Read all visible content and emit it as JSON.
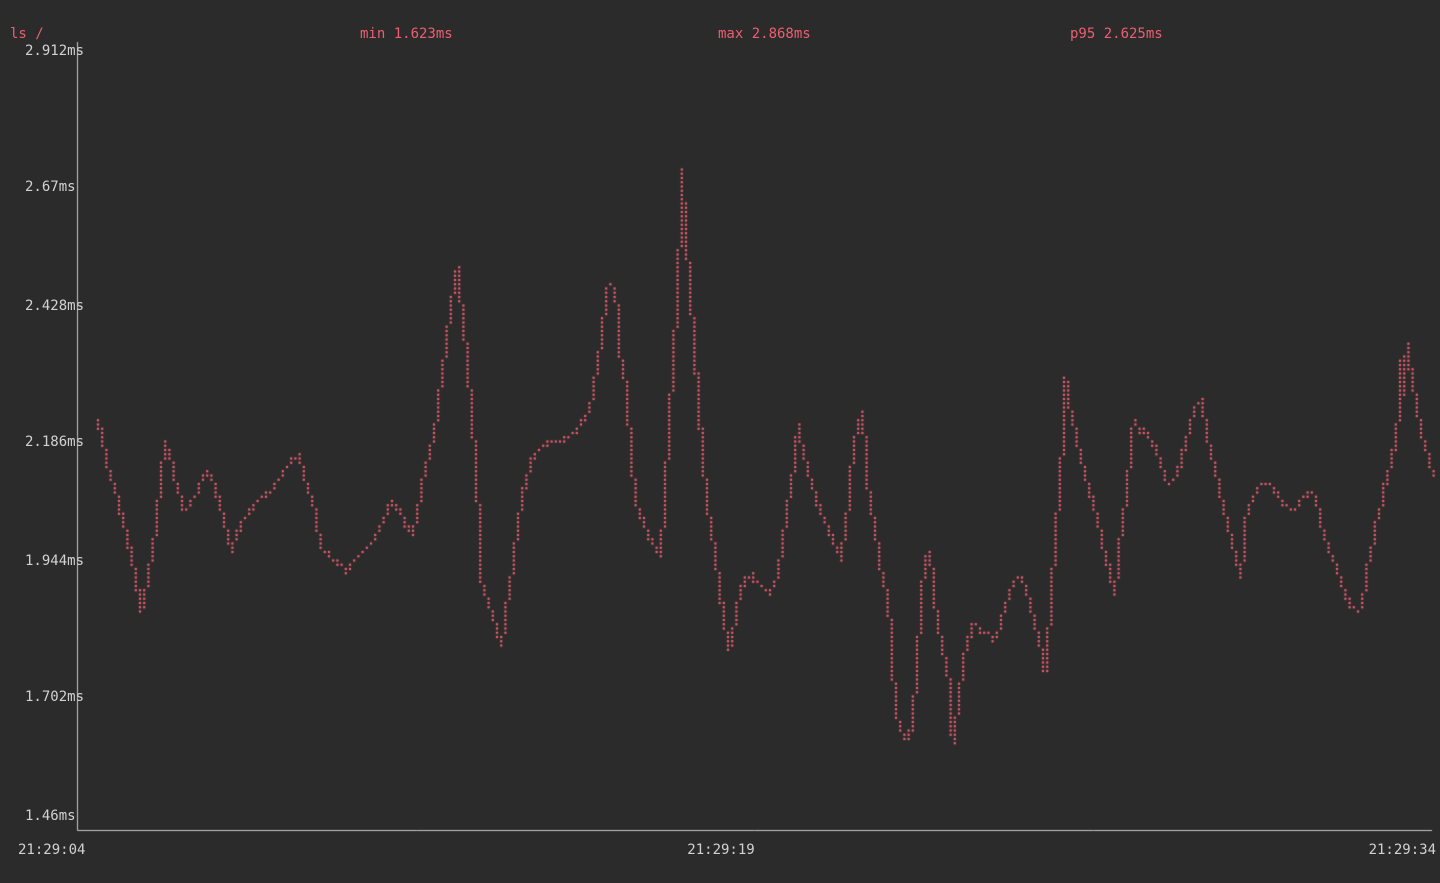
{
  "header": {
    "command": "ls /",
    "min": "min 1.623ms",
    "max": "max 2.868ms",
    "p95": "p95 2.625ms"
  },
  "colors": {
    "background": "#2b2b2b",
    "series_red": "#ec5f70",
    "text_gray": "#d2d2d2",
    "axis_gray": "#c9c9c9"
  },
  "chart_data": {
    "type": "line",
    "style": "dotted-braille-terminal",
    "title": "ls /",
    "xlabel": "",
    "ylabel": "",
    "grid": false,
    "legend": "none",
    "stats": {
      "min_ms": 1.623,
      "max_ms": 2.868,
      "p95_ms": 2.625
    },
    "ylim_ms": [
      1.46,
      2.912
    ],
    "x_window_seconds": 30,
    "x_ticks": [
      "21:29:04",
      "21:29:19",
      "21:29:34"
    ],
    "y_ticks": [
      {
        "label": "2.912ms",
        "value": 2.912
      },
      {
        "label": "2.67ms",
        "value": 2.67
      },
      {
        "label": "2.428ms",
        "value": 2.428
      },
      {
        "label": "2.186ms",
        "value": 2.186
      },
      {
        "label": "1.944ms",
        "value": 1.944
      },
      {
        "label": "1.702ms",
        "value": 1.702
      },
      {
        "label": "1.46ms",
        "value": 1.46
      }
    ],
    "points_t_ms": [
      [
        0.46,
        2.215
      ],
      [
        0.59,
        2.167
      ],
      [
        0.73,
        2.115
      ],
      [
        0.86,
        2.078
      ],
      [
        0.99,
        2.038
      ],
      [
        1.12,
        1.996
      ],
      [
        1.25,
        1.94
      ],
      [
        1.36,
        1.889
      ],
      [
        1.43,
        1.861
      ],
      [
        1.52,
        1.9
      ],
      [
        1.63,
        1.955
      ],
      [
        1.74,
        2.018
      ],
      [
        1.85,
        2.102
      ],
      [
        1.91,
        2.152
      ],
      [
        1.96,
        2.176
      ],
      [
        2.05,
        2.147
      ],
      [
        2.16,
        2.106
      ],
      [
        2.27,
        2.075
      ],
      [
        2.38,
        2.045
      ],
      [
        2.47,
        2.06
      ],
      [
        2.58,
        2.075
      ],
      [
        2.69,
        2.089
      ],
      [
        2.8,
        2.108
      ],
      [
        2.91,
        2.121
      ],
      [
        2.99,
        2.1
      ],
      [
        3.08,
        2.075
      ],
      [
        3.15,
        2.056
      ],
      [
        3.24,
        2.032
      ],
      [
        3.32,
        2.001
      ],
      [
        3.41,
        1.972
      ],
      [
        3.52,
        1.999
      ],
      [
        3.65,
        2.027
      ],
      [
        3.81,
        2.047
      ],
      [
        3.96,
        2.064
      ],
      [
        4.12,
        2.075
      ],
      [
        4.27,
        2.082
      ],
      [
        4.45,
        2.104
      ],
      [
        4.62,
        2.124
      ],
      [
        4.75,
        2.141
      ],
      [
        4.86,
        2.15
      ],
      [
        4.95,
        2.128
      ],
      [
        5.06,
        2.093
      ],
      [
        5.17,
        2.069
      ],
      [
        5.26,
        2.038
      ],
      [
        5.35,
        1.986
      ],
      [
        5.46,
        1.973
      ],
      [
        5.59,
        1.962
      ],
      [
        5.72,
        1.953
      ],
      [
        5.83,
        1.944
      ],
      [
        5.92,
        1.935
      ],
      [
        6.03,
        1.95
      ],
      [
        6.16,
        1.959
      ],
      [
        6.32,
        1.968
      ],
      [
        6.45,
        1.983
      ],
      [
        6.58,
        2.001
      ],
      [
        6.69,
        2.018
      ],
      [
        6.8,
        2.042
      ],
      [
        6.89,
        2.064
      ],
      [
        7.0,
        2.054
      ],
      [
        7.11,
        2.045
      ],
      [
        7.24,
        2.02
      ],
      [
        7.33,
        2.01
      ],
      [
        7.4,
        2.003
      ],
      [
        7.48,
        2.032
      ],
      [
        7.55,
        2.075
      ],
      [
        7.64,
        2.11
      ],
      [
        7.73,
        2.143
      ],
      [
        7.81,
        2.167
      ],
      [
        7.9,
        2.207
      ],
      [
        7.99,
        2.272
      ],
      [
        8.06,
        2.312
      ],
      [
        8.12,
        2.358
      ],
      [
        8.21,
        2.406
      ],
      [
        8.28,
        2.45
      ],
      [
        8.34,
        2.48
      ],
      [
        8.39,
        2.496
      ],
      [
        8.45,
        2.437
      ],
      [
        8.52,
        2.391
      ],
      [
        8.58,
        2.336
      ],
      [
        8.65,
        2.272
      ],
      [
        8.72,
        2.198
      ],
      [
        8.78,
        2.124
      ],
      [
        8.85,
        2.032
      ],
      [
        8.91,
        1.916
      ],
      [
        9.0,
        1.891
      ],
      [
        9.09,
        1.867
      ],
      [
        9.18,
        1.845
      ],
      [
        9.27,
        1.815
      ],
      [
        9.35,
        1.799
      ],
      [
        9.42,
        1.836
      ],
      [
        9.51,
        1.904
      ],
      [
        9.6,
        1.95
      ],
      [
        9.68,
        2.001
      ],
      [
        9.79,
        2.064
      ],
      [
        9.9,
        2.106
      ],
      [
        10.04,
        2.147
      ],
      [
        10.15,
        2.156
      ],
      [
        10.26,
        2.167
      ],
      [
        10.37,
        2.174
      ],
      [
        10.48,
        2.174
      ],
      [
        10.59,
        2.172
      ],
      [
        10.7,
        2.178
      ],
      [
        10.83,
        2.183
      ],
      [
        10.96,
        2.191
      ],
      [
        11.09,
        2.204
      ],
      [
        11.22,
        2.222
      ],
      [
        11.31,
        2.238
      ],
      [
        11.38,
        2.273
      ],
      [
        11.45,
        2.321
      ],
      [
        11.51,
        2.341
      ],
      [
        11.58,
        2.388
      ],
      [
        11.64,
        2.432
      ],
      [
        11.71,
        2.461
      ],
      [
        11.77,
        2.465
      ],
      [
        11.88,
        2.428
      ],
      [
        11.93,
        2.36
      ],
      [
        12.0,
        2.305
      ],
      [
        12.08,
        2.285
      ],
      [
        12.15,
        2.216
      ],
      [
        12.22,
        2.137
      ],
      [
        12.28,
        2.075
      ],
      [
        12.35,
        2.047
      ],
      [
        12.41,
        2.036
      ],
      [
        12.48,
        2.03
      ],
      [
        12.55,
        2.008
      ],
      [
        12.61,
        1.996
      ],
      [
        12.68,
        1.986
      ],
      [
        12.74,
        1.979
      ],
      [
        12.81,
        1.966
      ],
      [
        12.85,
        1.962
      ],
      [
        12.9,
        2.014
      ],
      [
        12.96,
        2.088
      ],
      [
        13.03,
        2.202
      ],
      [
        13.07,
        2.253
      ],
      [
        13.12,
        2.303
      ],
      [
        13.16,
        2.369
      ],
      [
        13.21,
        2.419
      ],
      [
        13.25,
        2.492
      ],
      [
        13.29,
        2.594
      ],
      [
        13.32,
        2.676
      ],
      [
        13.36,
        2.612
      ],
      [
        13.4,
        2.557
      ],
      [
        13.47,
        2.492
      ],
      [
        13.51,
        2.437
      ],
      [
        13.58,
        2.364
      ],
      [
        13.65,
        2.281
      ],
      [
        13.71,
        2.216
      ],
      [
        13.78,
        2.143
      ],
      [
        13.84,
        2.088
      ],
      [
        13.91,
        2.038
      ],
      [
        13.95,
        2.023
      ],
      [
        14.02,
        1.977
      ],
      [
        14.09,
        1.937
      ],
      [
        14.15,
        1.894
      ],
      [
        14.22,
        1.858
      ],
      [
        14.29,
        1.825
      ],
      [
        14.33,
        1.802
      ],
      [
        14.37,
        1.788
      ],
      [
        14.44,
        1.817
      ],
      [
        14.51,
        1.852
      ],
      [
        14.57,
        1.885
      ],
      [
        14.64,
        1.904
      ],
      [
        14.7,
        1.92
      ],
      [
        14.77,
        1.926
      ],
      [
        14.84,
        1.928
      ],
      [
        14.9,
        1.918
      ],
      [
        14.99,
        1.913
      ],
      [
        15.08,
        1.906
      ],
      [
        15.17,
        1.9
      ],
      [
        15.23,
        1.893
      ],
      [
        15.3,
        1.9
      ],
      [
        15.36,
        1.911
      ],
      [
        15.43,
        1.931
      ],
      [
        15.5,
        1.962
      ],
      [
        15.56,
        2.001
      ],
      [
        15.63,
        2.036
      ],
      [
        15.69,
        2.078
      ],
      [
        15.76,
        2.112
      ],
      [
        15.83,
        2.161
      ],
      [
        15.87,
        2.198
      ],
      [
        15.89,
        2.207
      ],
      [
        15.96,
        2.17
      ],
      [
        16.05,
        2.139
      ],
      [
        16.13,
        2.11
      ],
      [
        16.22,
        2.088
      ],
      [
        16.31,
        2.06
      ],
      [
        16.4,
        2.042
      ],
      [
        16.49,
        2.025
      ],
      [
        16.57,
        2.005
      ],
      [
        16.66,
        1.986
      ],
      [
        16.75,
        1.97
      ],
      [
        16.82,
        1.955
      ],
      [
        16.88,
        1.996
      ],
      [
        16.95,
        2.025
      ],
      [
        17.01,
        2.097
      ],
      [
        17.08,
        2.147
      ],
      [
        17.15,
        2.187
      ],
      [
        17.21,
        2.204
      ],
      [
        17.26,
        2.222
      ],
      [
        17.28,
        2.231
      ],
      [
        17.32,
        2.194
      ],
      [
        17.37,
        2.152
      ],
      [
        17.41,
        2.088
      ],
      [
        17.48,
        2.069
      ],
      [
        17.54,
        2.02
      ],
      [
        17.61,
        1.996
      ],
      [
        17.65,
        1.968
      ],
      [
        17.72,
        1.928
      ],
      [
        17.78,
        1.907
      ],
      [
        17.85,
        1.881
      ],
      [
        17.89,
        1.845
      ],
      [
        17.94,
        1.793
      ],
      [
        17.98,
        1.738
      ],
      [
        18.03,
        1.683
      ],
      [
        18.07,
        1.661
      ],
      [
        18.14,
        1.64
      ],
      [
        18.2,
        1.628
      ],
      [
        18.25,
        1.624
      ],
      [
        18.31,
        1.633
      ],
      [
        18.38,
        1.65
      ],
      [
        18.42,
        1.683
      ],
      [
        18.49,
        1.747
      ],
      [
        18.53,
        1.812
      ],
      [
        18.58,
        1.867
      ],
      [
        18.64,
        1.931
      ],
      [
        18.69,
        1.955
      ],
      [
        18.73,
        1.968
      ],
      [
        18.75,
        1.972
      ],
      [
        18.8,
        1.955
      ],
      [
        18.86,
        1.918
      ],
      [
        18.91,
        1.863
      ],
      [
        18.95,
        1.83
      ],
      [
        19.02,
        1.806
      ],
      [
        19.08,
        1.784
      ],
      [
        19.15,
        1.764
      ],
      [
        19.19,
        1.738
      ],
      [
        19.24,
        1.692
      ],
      [
        19.28,
        1.62
      ],
      [
        19.32,
        1.646
      ],
      [
        19.37,
        1.674
      ],
      [
        19.41,
        1.701
      ],
      [
        19.46,
        1.729
      ],
      [
        19.5,
        1.76
      ],
      [
        19.54,
        1.78
      ],
      [
        19.59,
        1.793
      ],
      [
        19.65,
        1.817
      ],
      [
        19.72,
        1.834
      ],
      [
        19.79,
        1.839
      ],
      [
        19.85,
        1.832
      ],
      [
        19.92,
        1.825
      ],
      [
        20.01,
        1.823
      ],
      [
        20.07,
        1.825
      ],
      [
        20.14,
        1.815
      ],
      [
        20.18,
        1.806
      ],
      [
        20.25,
        1.817
      ],
      [
        20.32,
        1.83
      ],
      [
        20.38,
        1.852
      ],
      [
        20.45,
        1.87
      ],
      [
        20.51,
        1.889
      ],
      [
        20.58,
        1.904
      ],
      [
        20.65,
        1.918
      ],
      [
        20.71,
        1.924
      ],
      [
        20.78,
        1.926
      ],
      [
        20.84,
        1.913
      ],
      [
        20.91,
        1.896
      ],
      [
        20.98,
        1.872
      ],
      [
        21.04,
        1.852
      ],
      [
        21.11,
        1.83
      ],
      [
        21.18,
        1.804
      ],
      [
        21.24,
        1.784
      ],
      [
        21.31,
        1.747
      ],
      [
        21.35,
        1.784
      ],
      [
        21.4,
        1.83
      ],
      [
        21.44,
        1.876
      ],
      [
        21.48,
        1.931
      ],
      [
        21.53,
        1.977
      ],
      [
        21.57,
        2.023
      ],
      [
        21.62,
        2.069
      ],
      [
        21.66,
        2.115
      ],
      [
        21.7,
        2.18
      ],
      [
        21.75,
        2.238
      ],
      [
        21.77,
        2.294
      ],
      [
        21.81,
        2.257
      ],
      [
        21.88,
        2.229
      ],
      [
        21.95,
        2.202
      ],
      [
        22.01,
        2.18
      ],
      [
        22.08,
        2.156
      ],
      [
        22.14,
        2.134
      ],
      [
        22.21,
        2.113
      ],
      [
        22.27,
        2.091
      ],
      [
        22.34,
        2.069
      ],
      [
        22.41,
        2.047
      ],
      [
        22.47,
        2.027
      ],
      [
        22.54,
        2.001
      ],
      [
        22.6,
        1.977
      ],
      [
        22.67,
        1.957
      ],
      [
        22.74,
        1.931
      ],
      [
        22.78,
        1.913
      ],
      [
        22.82,
        1.894
      ],
      [
        22.85,
        1.889
      ],
      [
        22.89,
        1.931
      ],
      [
        22.94,
        1.968
      ],
      [
        22.98,
        2.001
      ],
      [
        23.05,
        2.045
      ],
      [
        23.11,
        2.088
      ],
      [
        23.18,
        2.134
      ],
      [
        23.22,
        2.174
      ],
      [
        23.27,
        2.216
      ],
      [
        23.31,
        2.207
      ],
      [
        23.38,
        2.194
      ],
      [
        23.44,
        2.198
      ],
      [
        23.51,
        2.193
      ],
      [
        23.58,
        2.185
      ],
      [
        23.66,
        2.176
      ],
      [
        23.75,
        2.158
      ],
      [
        23.84,
        2.139
      ],
      [
        23.93,
        2.113
      ],
      [
        23.99,
        2.104
      ],
      [
        24.06,
        2.099
      ],
      [
        24.12,
        2.104
      ],
      [
        24.19,
        2.11
      ],
      [
        24.26,
        2.124
      ],
      [
        24.35,
        2.156
      ],
      [
        24.43,
        2.18
      ],
      [
        24.5,
        2.204
      ],
      [
        24.57,
        2.227
      ],
      [
        24.63,
        2.237
      ],
      [
        24.7,
        2.242
      ],
      [
        24.76,
        2.253
      ],
      [
        24.83,
        2.211
      ],
      [
        24.9,
        2.18
      ],
      [
        24.96,
        2.156
      ],
      [
        25.03,
        2.134
      ],
      [
        25.09,
        2.112
      ],
      [
        25.16,
        2.08
      ],
      [
        25.23,
        2.056
      ],
      [
        25.29,
        2.034
      ],
      [
        25.36,
        2.01
      ],
      [
        25.42,
        1.99
      ],
      [
        25.49,
        1.966
      ],
      [
        25.56,
        1.946
      ],
      [
        25.62,
        1.926
      ],
      [
        25.67,
        1.964
      ],
      [
        25.71,
        1.996
      ],
      [
        25.75,
        2.042
      ],
      [
        25.82,
        2.06
      ],
      [
        25.89,
        2.067
      ],
      [
        25.97,
        2.082
      ],
      [
        26.06,
        2.093
      ],
      [
        26.15,
        2.097
      ],
      [
        26.24,
        2.097
      ],
      [
        26.33,
        2.088
      ],
      [
        26.41,
        2.077
      ],
      [
        26.5,
        2.064
      ],
      [
        26.59,
        2.053
      ],
      [
        26.68,
        2.049
      ],
      [
        26.77,
        2.051
      ],
      [
        26.86,
        2.056
      ],
      [
        26.94,
        2.062
      ],
      [
        27.03,
        2.069
      ],
      [
        27.12,
        2.078
      ],
      [
        27.21,
        2.082
      ],
      [
        27.27,
        2.069
      ],
      [
        27.34,
        2.049
      ],
      [
        27.41,
        2.02
      ],
      [
        27.47,
        1.999
      ],
      [
        27.56,
        1.981
      ],
      [
        27.65,
        1.959
      ],
      [
        27.74,
        1.935
      ],
      [
        27.82,
        1.913
      ],
      [
        27.91,
        1.893
      ],
      [
        28.0,
        1.876
      ],
      [
        28.09,
        1.867
      ],
      [
        28.18,
        1.861
      ],
      [
        28.24,
        1.861
      ],
      [
        28.31,
        1.885
      ],
      [
        28.38,
        1.922
      ],
      [
        28.44,
        1.955
      ],
      [
        28.51,
        1.981
      ],
      [
        28.57,
        2.014
      ],
      [
        28.64,
        2.038
      ],
      [
        28.71,
        2.056
      ],
      [
        28.77,
        2.086
      ],
      [
        28.84,
        2.106
      ],
      [
        28.91,
        2.13
      ],
      [
        28.97,
        2.156
      ],
      [
        29.04,
        2.174
      ],
      [
        29.1,
        2.235
      ],
      [
        29.15,
        2.327
      ],
      [
        29.19,
        2.262
      ],
      [
        29.24,
        2.312
      ],
      [
        29.28,
        2.354
      ],
      [
        29.32,
        2.318
      ],
      [
        29.37,
        2.299
      ],
      [
        29.43,
        2.272
      ],
      [
        29.5,
        2.238
      ],
      [
        29.57,
        2.204
      ],
      [
        29.63,
        2.18
      ],
      [
        29.7,
        2.158
      ],
      [
        29.77,
        2.136
      ],
      [
        29.83,
        2.119
      ],
      [
        29.85,
        2.112
      ]
    ]
  }
}
